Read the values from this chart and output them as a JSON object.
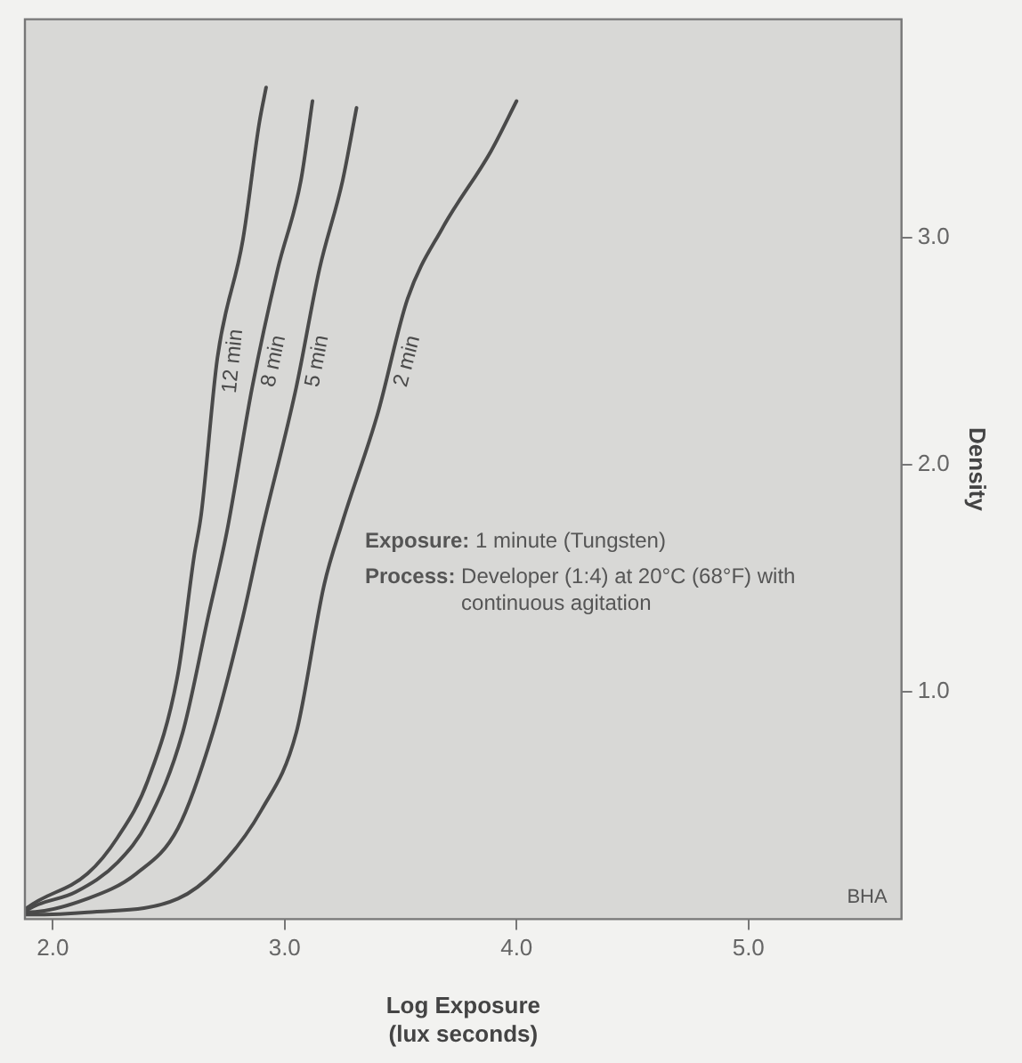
{
  "chart_data": {
    "type": "line",
    "xlabel": "Log Exposure\n(lux seconds)",
    "ylabel": "Density",
    "xlim": [
      1.88,
      5.66
    ],
    "xticks": [
      {
        "value": 2,
        "label": "2.0"
      },
      {
        "value": 3,
        "label": "3.0"
      },
      {
        "value": 4,
        "label": "4.0"
      },
      {
        "value": 5,
        "label": "5.0"
      }
    ],
    "ylim": [
      0,
      3.96
    ],
    "yticks": [
      {
        "value": 1,
        "label": "1.0"
      },
      {
        "value": 2,
        "label": "2.0"
      },
      {
        "value": 3,
        "label": "3.0"
      }
    ],
    "grid": false,
    "legend": false,
    "marker": "none",
    "line_style": "solid",
    "series": [
      {
        "name": "12 min",
        "color": "#4a4a4a",
        "x": [
          1.88,
          1.89,
          2.15,
          2.28,
          2.41,
          2.54,
          2.61,
          2.64,
          2.71,
          2.82,
          2.89,
          2.92
        ],
        "values": [
          0.04,
          0.05,
          0.2,
          0.36,
          0.61,
          1.08,
          1.6,
          1.78,
          2.47,
          2.99,
          3.5,
          3.66
        ]
      },
      {
        "name": "8 min",
        "color": "#4a4a4a",
        "x": [
          1.88,
          1.89,
          2.1,
          2.28,
          2.41,
          2.56,
          2.67,
          2.75,
          2.86,
          2.97,
          3.07,
          3.12
        ],
        "values": [
          0.03,
          0.04,
          0.12,
          0.25,
          0.43,
          0.82,
          1.33,
          1.7,
          2.34,
          2.86,
          3.25,
          3.6
        ]
      },
      {
        "name": "5 min",
        "color": "#4a4a4a",
        "x": [
          1.88,
          1.89,
          2.15,
          2.36,
          2.54,
          2.69,
          2.82,
          2.9,
          3.05,
          3.15,
          3.25,
          3.31
        ],
        "values": [
          0.03,
          0.03,
          0.09,
          0.2,
          0.4,
          0.82,
          1.33,
          1.7,
          2.34,
          2.86,
          3.25,
          3.57
        ]
      },
      {
        "name": "2 min",
        "color": "#4a4a4a",
        "x": [
          1.88,
          1.89,
          2.15,
          2.54,
          2.71,
          2.9,
          3.05,
          3.17,
          3.25,
          3.4,
          3.53,
          3.68,
          3.89,
          4.0
        ],
        "values": [
          0.02,
          0.02,
          0.03,
          0.09,
          0.22,
          0.48,
          0.82,
          1.47,
          1.75,
          2.22,
          2.73,
          3.04,
          3.38,
          3.6
        ]
      }
    ],
    "annotations": [
      "Exposure: 1 minute (Tungsten)",
      "Process: Developer (1:4) at 20°C (68°F) with continuous agitation",
      "BHA"
    ]
  }
}
